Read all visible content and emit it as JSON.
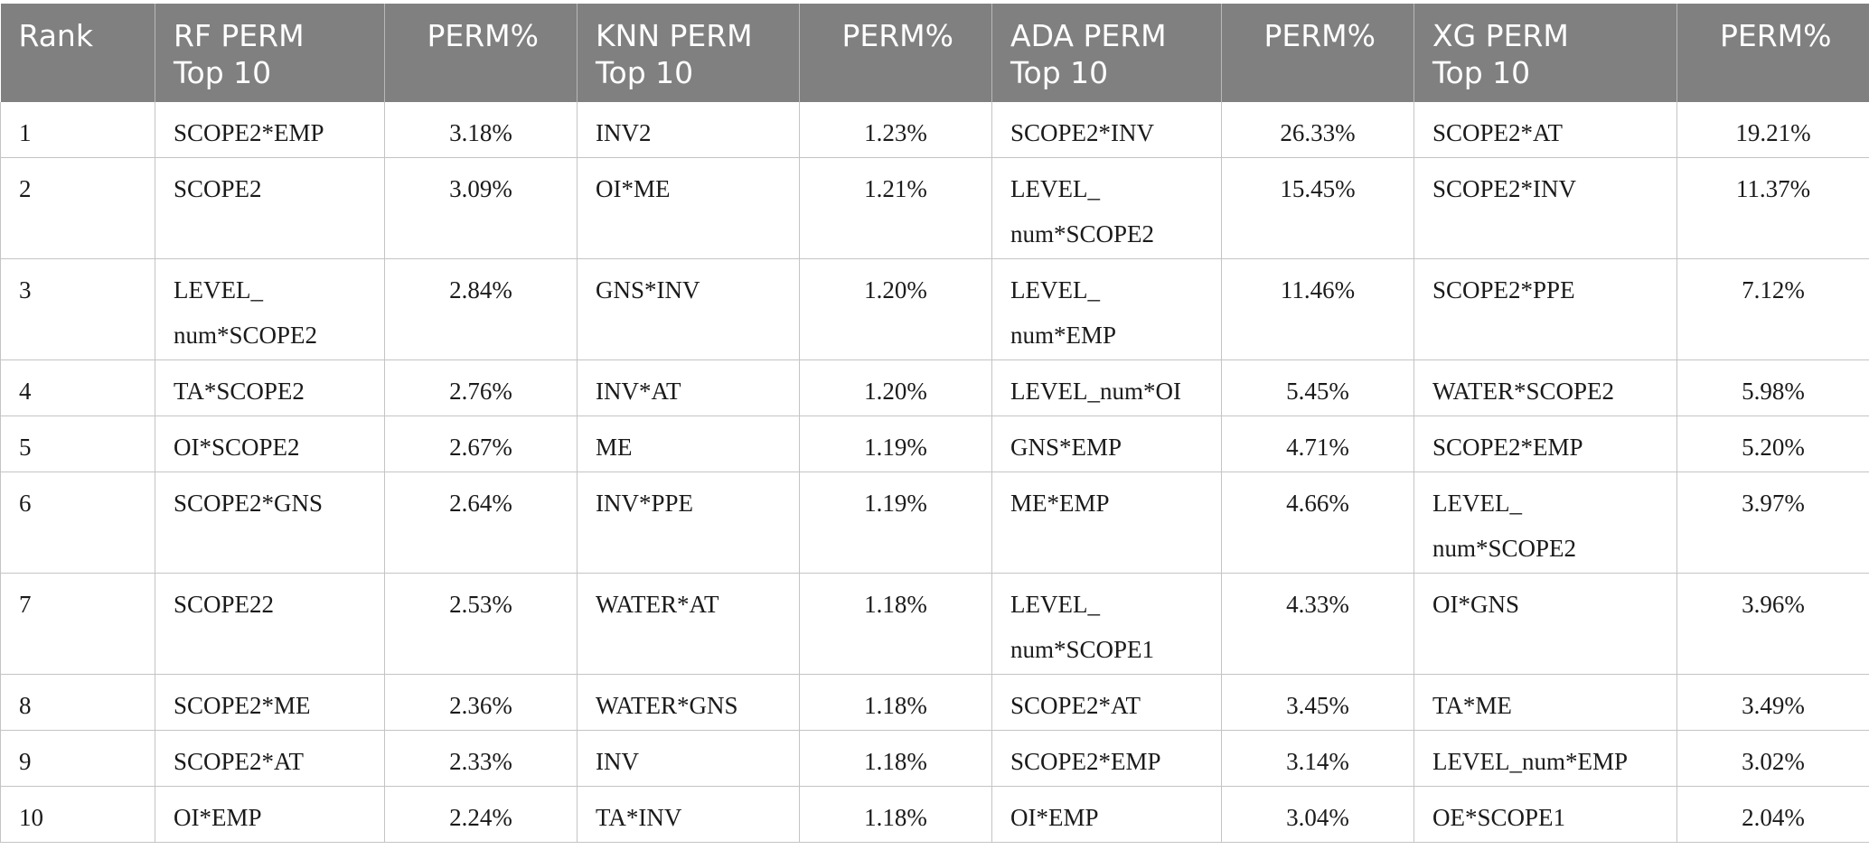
{
  "headers": [
    {
      "line1": "Rank",
      "line2": ""
    },
    {
      "line1": "RF PERM",
      "line2": "Top 10"
    },
    {
      "line1": "PERM%",
      "line2": ""
    },
    {
      "line1": "KNN PERM",
      "line2": "Top 10"
    },
    {
      "line1": "PERM%",
      "line2": ""
    },
    {
      "line1": "ADA PERM",
      "line2": "Top 10"
    },
    {
      "line1": "PERM%",
      "line2": ""
    },
    {
      "line1": "XG PERM",
      "line2": "Top 10"
    },
    {
      "line1": "PERM%",
      "line2": ""
    }
  ],
  "rows": [
    {
      "rank": "1",
      "rf": [
        "SCOPE2*EMP",
        ""
      ],
      "rf_pct": "3.18%",
      "knn": "INV2",
      "knn_pct": "1.23%",
      "ada": [
        "SCOPE2*INV",
        ""
      ],
      "ada_pct": "26.33%",
      "xg": [
        "SCOPE2*AT",
        ""
      ],
      "xg_pct": "19.21%"
    },
    {
      "rank": "2",
      "rf": [
        "SCOPE2",
        ""
      ],
      "rf_pct": "3.09%",
      "knn": "OI*ME",
      "knn_pct": "1.21%",
      "ada": [
        "LEVEL_",
        "num*SCOPE2"
      ],
      "ada_pct": "15.45%",
      "xg": [
        "SCOPE2*INV",
        ""
      ],
      "xg_pct": "11.37%"
    },
    {
      "rank": "3",
      "rf": [
        "LEVEL_",
        "num*SCOPE2"
      ],
      "rf_pct": "2.84%",
      "knn": "GNS*INV",
      "knn_pct": "1.20%",
      "ada": [
        "LEVEL_",
        "num*EMP"
      ],
      "ada_pct": "11.46%",
      "xg": [
        "SCOPE2*PPE",
        ""
      ],
      "xg_pct": "7.12%"
    },
    {
      "rank": "4",
      "rf": [
        "TA*SCOPE2",
        ""
      ],
      "rf_pct": "2.76%",
      "knn": "INV*AT",
      "knn_pct": "1.20%",
      "ada": [
        "LEVEL_num*OI",
        ""
      ],
      "ada_pct": "5.45%",
      "xg": [
        "WATER*SCOPE2",
        ""
      ],
      "xg_pct": "5.98%"
    },
    {
      "rank": "5",
      "rf": [
        "OI*SCOPE2",
        ""
      ],
      "rf_pct": "2.67%",
      "knn": "ME",
      "knn_pct": "1.19%",
      "ada": [
        "GNS*EMP",
        ""
      ],
      "ada_pct": "4.71%",
      "xg": [
        "SCOPE2*EMP",
        ""
      ],
      "xg_pct": "5.20%"
    },
    {
      "rank": "6",
      "rf": [
        "SCOPE2*GNS",
        ""
      ],
      "rf_pct": "2.64%",
      "knn": "INV*PPE",
      "knn_pct": "1.19%",
      "ada": [
        "ME*EMP",
        ""
      ],
      "ada_pct": "4.66%",
      "xg": [
        "LEVEL_",
        "num*SCOPE2"
      ],
      "xg_pct": "3.97%"
    },
    {
      "rank": "7",
      "rf": [
        "SCOPE22",
        ""
      ],
      "rf_pct": "2.53%",
      "knn": "WATER*AT",
      "knn_pct": "1.18%",
      "ada": [
        "LEVEL_",
        "num*SCOPE1"
      ],
      "ada_pct": "4.33%",
      "xg": [
        "OI*GNS",
        ""
      ],
      "xg_pct": "3.96%"
    },
    {
      "rank": "8",
      "rf": [
        "SCOPE2*ME",
        ""
      ],
      "rf_pct": "2.36%",
      "knn": "WATER*GNS",
      "knn_pct": "1.18%",
      "ada": [
        "SCOPE2*AT",
        ""
      ],
      "ada_pct": "3.45%",
      "xg": [
        "TA*ME",
        ""
      ],
      "xg_pct": "3.49%"
    },
    {
      "rank": "9",
      "rf": [
        "SCOPE2*AT",
        ""
      ],
      "rf_pct": "2.33%",
      "knn": "INV",
      "knn_pct": "1.18%",
      "ada": [
        "SCOPE2*EMP",
        ""
      ],
      "ada_pct": "3.14%",
      "xg": [
        "LEVEL_num*EMP",
        ""
      ],
      "xg_pct": "3.02%"
    },
    {
      "rank": "10",
      "rf": [
        "OI*EMP",
        ""
      ],
      "rf_pct": "2.24%",
      "knn": "TA*INV",
      "knn_pct": "1.18%",
      "ada": [
        "OI*EMP",
        ""
      ],
      "ada_pct": "3.04%",
      "xg": [
        "OE*SCOPE1",
        ""
      ],
      "xg_pct": "2.04%"
    }
  ]
}
